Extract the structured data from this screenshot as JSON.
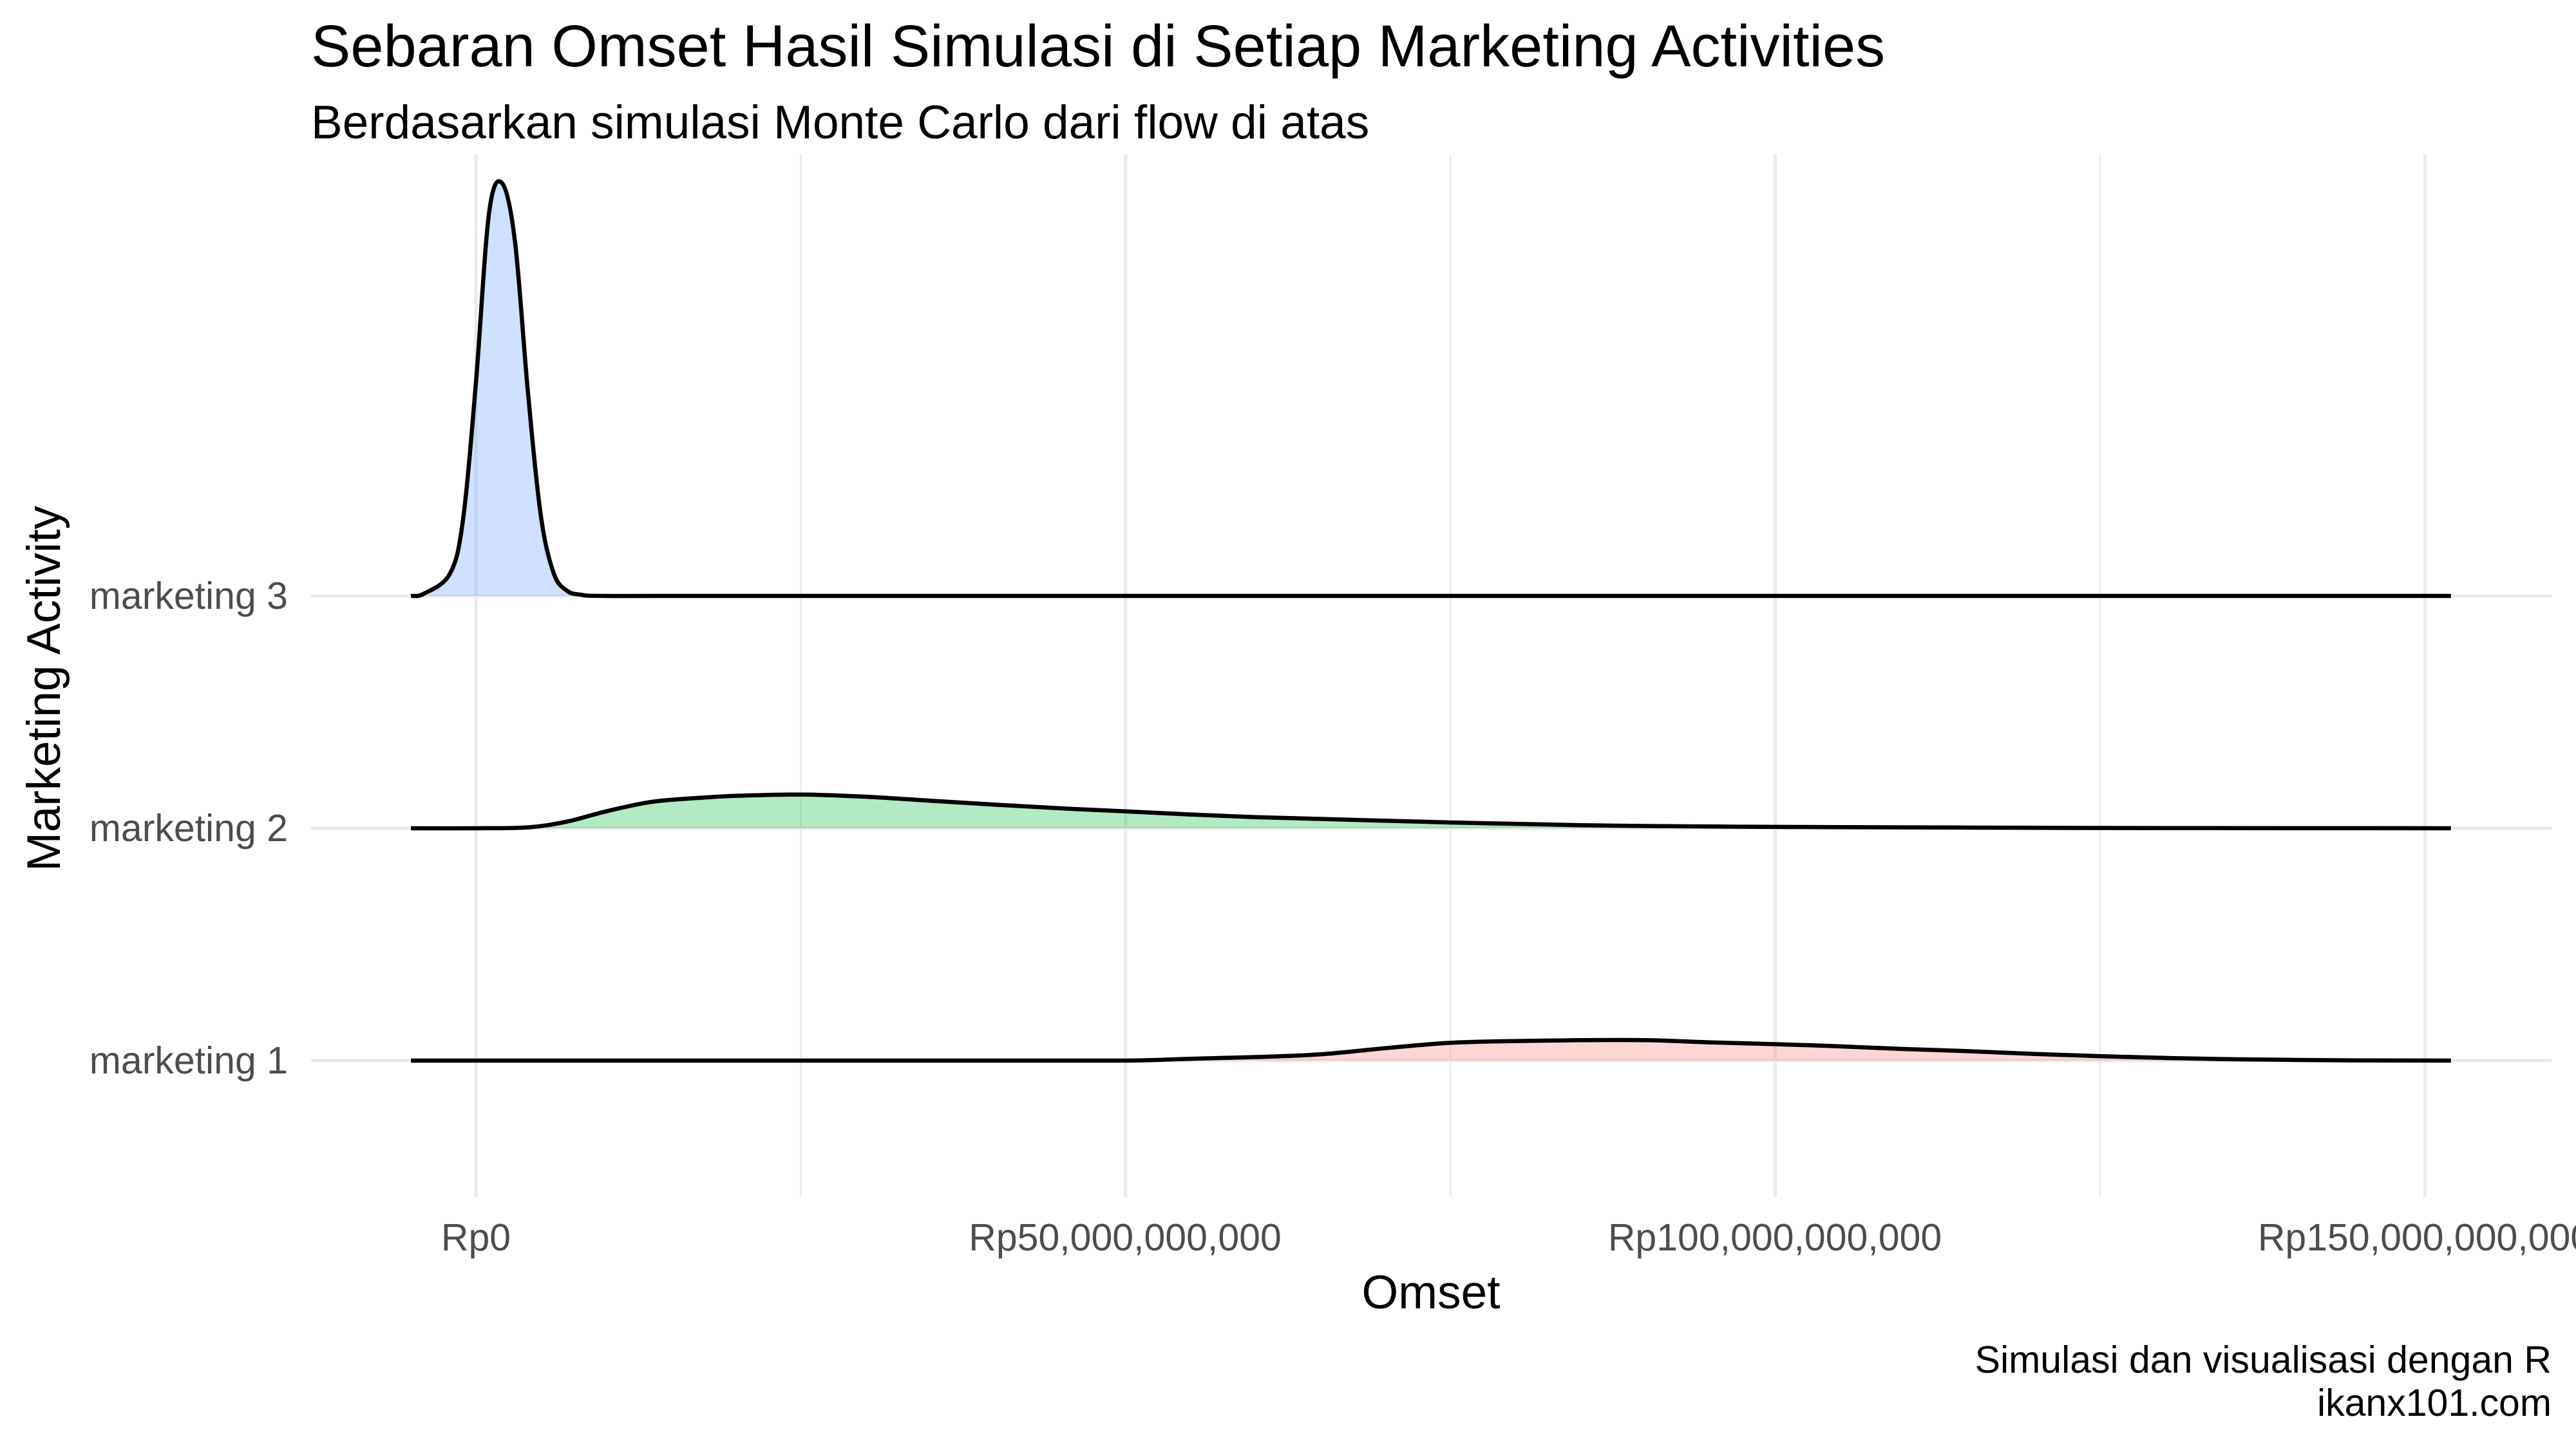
{
  "chart_data": {
    "type": "ridgeline",
    "title": "Sebaran Omset Hasil Simulasi di Setiap Marketing Activities",
    "subtitle": "Berdasarkan simulasi Monte Carlo dari flow di atas",
    "xlabel": "Omset",
    "ylabel": "Marketing Activity",
    "caption_lines": [
      "Simulasi dan visualisasi dengan R",
      "ikanx101.com"
    ],
    "x_tick_labels": [
      "Rp0",
      "Rp50,000,000,000",
      "Rp100,000,000,000",
      "Rp150,000,000,000"
    ],
    "x_ticks": [
      0,
      50000000000,
      100000000000,
      150000000000
    ],
    "xlim": [
      -5000000000,
      152000000000
    ],
    "grid": true,
    "legend": "none",
    "categories": [
      "marketing 1",
      "marketing 2",
      "marketing 3"
    ],
    "series": [
      {
        "name": "marketing 1",
        "fill": "#f8766d",
        "x": [
          -5000000000,
          0,
          20000000000,
          40000000000,
          50000000000,
          55000000000,
          60000000000,
          65000000000,
          70000000000,
          75000000000,
          80000000000,
          85000000000,
          90000000000,
          95000000000,
          100000000000,
          105000000000,
          110000000000,
          115000000000,
          120000000000,
          125000000000,
          130000000000,
          135000000000,
          140000000000,
          145000000000,
          152000000000
        ],
        "y": [
          0,
          0,
          0,
          0,
          0,
          0.04,
          0.08,
          0.14,
          0.28,
          0.4,
          0.44,
          0.46,
          0.46,
          0.41,
          0.37,
          0.32,
          0.26,
          0.21,
          0.15,
          0.1,
          0.06,
          0.03,
          0.015,
          0.005,
          0
        ]
      },
      {
        "name": "marketing 2",
        "fill": "#00ba38",
        "x": [
          -5000000000,
          0,
          4000000000,
          7000000000,
          10000000000,
          13000000000,
          15000000000,
          18000000000,
          20000000000,
          25000000000,
          30000000000,
          35000000000,
          40000000000,
          45000000000,
          50000000000,
          55000000000,
          60000000000,
          65000000000,
          70000000000,
          75000000000,
          80000000000,
          85000000000,
          90000000000,
          95000000000,
          100000000000,
          110000000000,
          120000000000,
          130000000000,
          152000000000
        ],
        "y": [
          0,
          0,
          0.02,
          0.15,
          0.38,
          0.57,
          0.64,
          0.7,
          0.73,
          0.76,
          0.71,
          0.62,
          0.53,
          0.45,
          0.38,
          0.31,
          0.25,
          0.21,
          0.17,
          0.13,
          0.1,
          0.07,
          0.05,
          0.04,
          0.03,
          0.02,
          0.01,
          0.004,
          0
        ]
      },
      {
        "name": "marketing 3",
        "fill": "#619cff",
        "x": [
          -5000000000,
          -4000000000,
          -2000000000,
          -1000000000,
          0,
          1000000000,
          2000000000,
          3000000000,
          4000000000,
          5000000000,
          6000000000,
          7000000000,
          8000000000,
          10000000000,
          20000000000,
          50000000000,
          100000000000,
          152000000000
        ],
        "y": [
          0,
          0.05,
          0.5,
          1.7,
          4.8,
          8.6,
          9.3,
          8.0,
          4.6,
          1.8,
          0.5,
          0.12,
          0.03,
          0,
          0,
          0,
          0,
          0
        ]
      }
    ]
  }
}
